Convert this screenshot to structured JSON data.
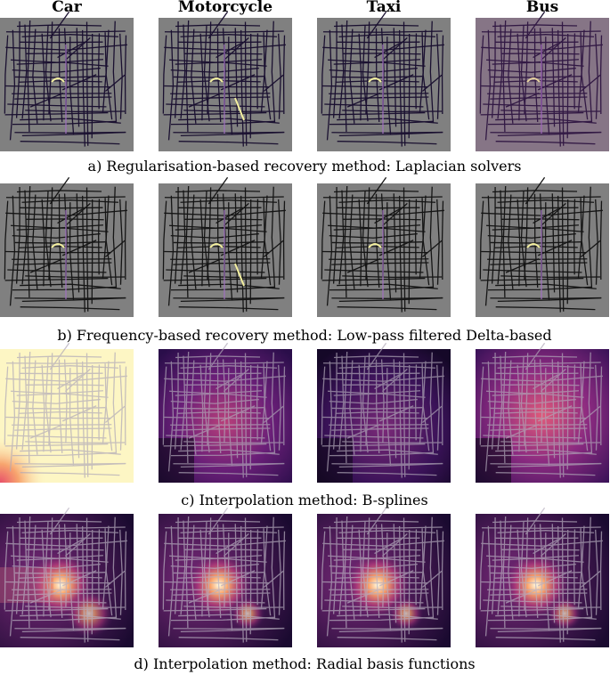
{
  "columns": [
    "Car",
    "Motorcycle",
    "Taxi",
    "Bus"
  ],
  "rows": [
    {
      "caption": "a) Regularisation-based recovery method: Laplacian solvers"
    },
    {
      "caption": "b) Frequency-based recovery method: Low-pass filtered Delta-based"
    },
    {
      "caption": "c) Interpolation method: B-splines"
    },
    {
      "caption": "d) Interpolation method: Radial basis functions"
    }
  ]
}
